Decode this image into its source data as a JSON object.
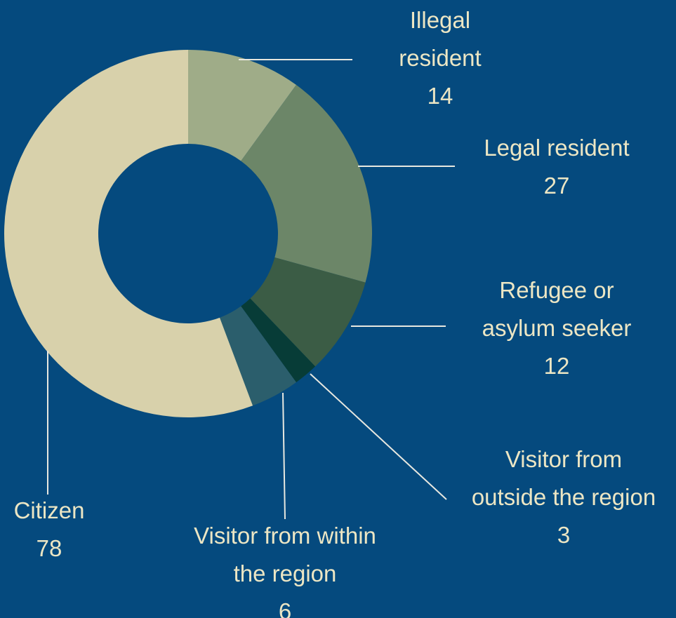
{
  "chart_data": {
    "type": "pie",
    "variant": "donut",
    "title": "",
    "slices": [
      {
        "name": "Illegal resident",
        "lines": [
          "Illegal",
          "resident"
        ],
        "value": 14,
        "value_label": "14",
        "color": "#9fac88"
      },
      {
        "name": "Legal resident",
        "lines": [
          "Legal resident"
        ],
        "value": 27,
        "value_label": "27",
        "color": "#6c8668"
      },
      {
        "name": "Refugee or asylum seeker",
        "lines": [
          "Refugee or",
          "asylum seeker"
        ],
        "value": 12,
        "value_label": "12",
        "color": "#3b5c45"
      },
      {
        "name": "Visitor from outside the region",
        "lines": [
          "Visitor from",
          "outside the region"
        ],
        "value": 3,
        "value_label": "3",
        "color": "#073c37"
      },
      {
        "name": "Visitor from within the region",
        "lines": [
          "Visitor from within",
          "the region"
        ],
        "value": 6,
        "value_label": "6",
        "color": "#2b5e6c"
      },
      {
        "name": "Citizen",
        "lines": [
          "Citizen"
        ],
        "value": 78,
        "value_label": "78",
        "color": "#d8d1ab"
      }
    ],
    "legend": "none",
    "colors": {
      "background": "#054a7e",
      "label_text": "#ece6c4",
      "leader_lines": "#e8e8e0"
    }
  }
}
